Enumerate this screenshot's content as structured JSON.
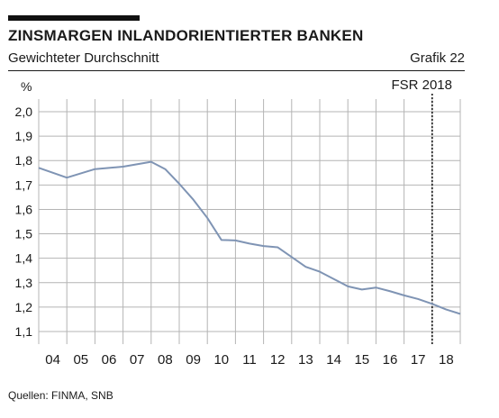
{
  "header": {
    "title": "ZINSMARGEN INLANDORIENTIERTER BANKEN",
    "subtitle": "Gewichteter Durchschnitt",
    "figure_number": "Grafik 22"
  },
  "footer": {
    "source": "Quellen: FINMA, SNB"
  },
  "colors": {
    "line": "#7f94b4",
    "grid": "#b4b4b4",
    "text": "#1a1a1a"
  },
  "chart_data": {
    "type": "line",
    "title": "ZINSMARGEN INLANDORIENTIERTER BANKEN",
    "subtitle": "Gewichteter Durchschnitt",
    "ylabel": "%",
    "xlabel": "",
    "ylim": [
      1.1,
      2.0
    ],
    "yticks": [
      1.1,
      1.2,
      1.3,
      1.4,
      1.5,
      1.6,
      1.7,
      1.8,
      1.9,
      2.0
    ],
    "ytick_labels": [
      "1,1",
      "1,2",
      "1,3",
      "1,4",
      "1,5",
      "1,6",
      "1,7",
      "1,8",
      "1,9",
      "2,0"
    ],
    "xlim": [
      2003.5,
      2018.5
    ],
    "xtick_labels": [
      "04",
      "05",
      "06",
      "07",
      "08",
      "09",
      "10",
      "11",
      "12",
      "13",
      "14",
      "15",
      "16",
      "17",
      "18"
    ],
    "grid": true,
    "annotation": {
      "label": "FSR 2018",
      "x": 2017.5,
      "style": "dotted vertical line"
    },
    "series": [
      {
        "x": [
          2003.5,
          2004.5,
          2005.5,
          2006.5,
          2007.5,
          2008.0,
          2008.5,
          2009.0,
          2009.5,
          2010.0,
          2010.5,
          2011.0,
          2011.5,
          2012.0,
          2012.5,
          2013.0,
          2013.5,
          2014.0,
          2014.5,
          2015.0,
          2015.5,
          2016.0,
          2016.5,
          2017.0,
          2017.5,
          2018.0,
          2018.5
        ],
        "values": [
          1.77,
          1.73,
          1.765,
          1.775,
          1.795,
          1.765,
          1.705,
          1.64,
          1.565,
          1.475,
          1.473,
          1.46,
          1.45,
          1.445,
          1.405,
          1.365,
          1.345,
          1.315,
          1.285,
          1.272,
          1.28,
          1.265,
          1.248,
          1.233,
          1.213,
          1.19,
          1.172
        ]
      }
    ]
  }
}
